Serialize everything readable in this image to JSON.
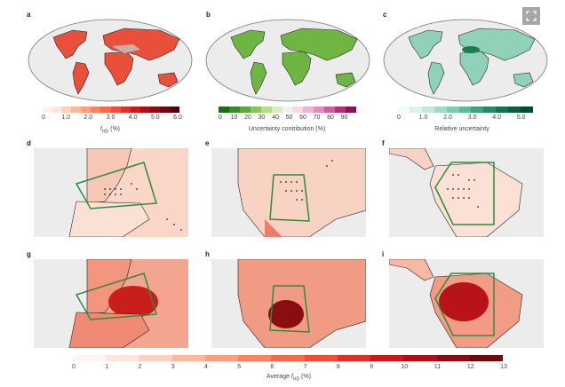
{
  "panels": {
    "a": {
      "label": "a",
      "colorbar": {
        "ticks": [
          "0",
          "1.0",
          "2.0",
          "3.0",
          "4.0",
          "5.0",
          "6.0"
        ],
        "label_main": "f",
        "label_sub": "HD",
        "label_unit": " (%)"
      }
    },
    "b": {
      "label": "b",
      "colorbar": {
        "ticks": [
          "0",
          "10",
          "20",
          "30",
          "40",
          "50",
          "60",
          "70",
          "80",
          "90"
        ],
        "label": "Uncertainty contribution (%)"
      }
    },
    "c": {
      "label": "c",
      "colorbar": {
        "ticks": [
          "0",
          "1.0",
          "2.0",
          "3.0",
          "4.0",
          "5.0"
        ],
        "label": "Relative uncertainty"
      }
    },
    "d": {
      "label": "d",
      "region": "Europe",
      "variable": "uncertainty"
    },
    "e": {
      "label": "e",
      "region": "North America",
      "variable": "uncertainty"
    },
    "f": {
      "label": "f",
      "region": "South America",
      "variable": "uncertainty"
    },
    "g": {
      "label": "g",
      "region": "Europe",
      "variable": "average"
    },
    "h": {
      "label": "h",
      "region": "North America",
      "variable": "average"
    },
    "i": {
      "label": "i",
      "region": "South America",
      "variable": "average"
    }
  },
  "bottom_colorbar": {
    "ticks": [
      "0",
      "1",
      "2",
      "3",
      "4",
      "5",
      "6",
      "7",
      "8",
      "9",
      "10",
      "11",
      "12",
      "13"
    ],
    "label_prefix": "Average ",
    "label_main": "f",
    "label_sub": "HD",
    "label_unit": " (%)"
  },
  "colors": {
    "reds": [
      "#fff5f0",
      "#fee6dc",
      "#fdd0bf",
      "#fcb79f",
      "#fc9e80",
      "#fb8363",
      "#f6694b",
      "#ee4d37",
      "#dd3028",
      "#c7191e",
      "#ad1016",
      "#8f0b13",
      "#6e0a0f",
      "#4f000c"
    ],
    "green_pink": [
      "#1f6b1a",
      "#3b8a2a",
      "#5ea53a",
      "#88c45a",
      "#b4dc8a",
      "#d8eebd",
      "#f2f2f2",
      "#f6d8e8",
      "#eeb3d2",
      "#e08bbb",
      "#cc5c9b",
      "#b22f7c",
      "#8c0f5a"
    ],
    "teal": [
      "#f3fbf8",
      "#ddf2ea",
      "#c2e8d9",
      "#a0dcc5",
      "#7ccdb0",
      "#58bc98",
      "#3aa47d",
      "#248c64",
      "#15754f",
      "#0b5e3b",
      "#044a2c"
    ],
    "region_box": "#2e8b3e",
    "ocean": "#ececec"
  },
  "ui": {
    "expand_icon": "expand-icon"
  }
}
